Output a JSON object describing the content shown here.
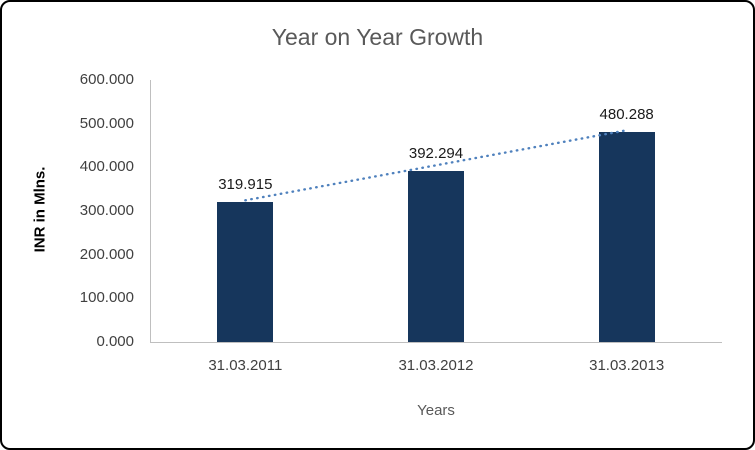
{
  "frame": {
    "background": "#ffffff",
    "border_color": "#000000"
  },
  "chart_data": {
    "type": "bar",
    "title": "Year on Year Growth",
    "xlabel": "Years",
    "ylabel": "INR in Mlns.",
    "categories": [
      "31.03.2011",
      "31.03.2012",
      "31.03.2013"
    ],
    "values": [
      319.915,
      392.294,
      480.288
    ],
    "data_labels": [
      "319.915",
      "392.294",
      "480.288"
    ],
    "ylim": [
      0,
      600
    ],
    "ytick_step": 100,
    "ytick_labels": [
      "0.000",
      "100.000",
      "200.000",
      "300.000",
      "400.000",
      "500.000",
      "600.000"
    ],
    "bar_color": "#16365C",
    "grid": false,
    "legend": "none",
    "trendline": {
      "style": "dotted",
      "color": "#4F81BD"
    }
  }
}
